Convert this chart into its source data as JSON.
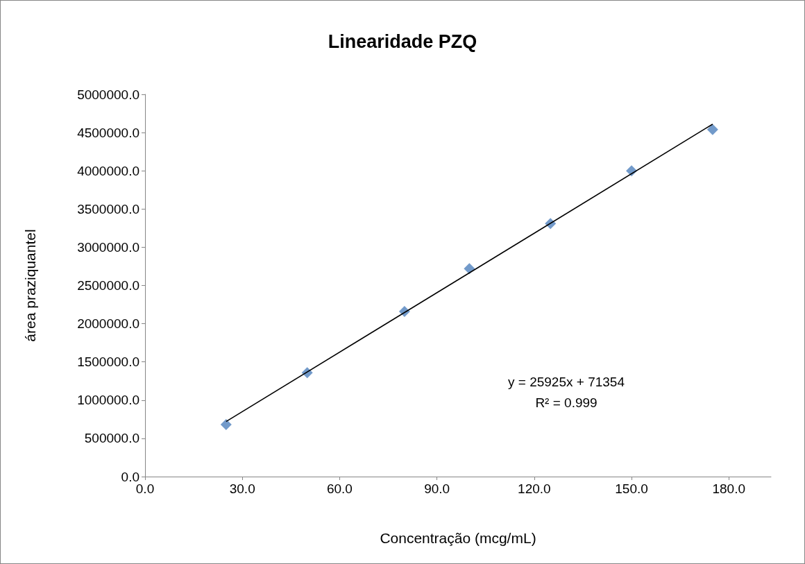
{
  "chart_data": {
    "type": "scatter",
    "title": "Linearidade PZQ",
    "xlabel": "Concentração (mcg/mL)",
    "ylabel": "área praziquantel",
    "series": [
      {
        "type": "scatter",
        "color": "#4f81bd",
        "marker": "diamond",
        "x": [
          25,
          50,
          80,
          100,
          125,
          150,
          175
        ],
        "values": [
          680000,
          1360000,
          2160000,
          2720000,
          3310000,
          4000000,
          4540000
        ]
      },
      {
        "type": "line",
        "color": "#000000",
        "marker": "none",
        "line_style": "solid",
        "x": [
          25,
          175
        ],
        "values": [
          720000,
          4610000
        ]
      }
    ],
    "xlim": [
      0,
      193
    ],
    "ylim": [
      0,
      5000000
    ],
    "xticks": [
      {
        "value": 0,
        "label": "0.0"
      },
      {
        "value": 30,
        "label": "30.0"
      },
      {
        "value": 60,
        "label": "60.0"
      },
      {
        "value": 90,
        "label": "90.0"
      },
      {
        "value": 120,
        "label": "120.0"
      },
      {
        "value": 150,
        "label": "150.0"
      },
      {
        "value": 180,
        "label": "180.0"
      }
    ],
    "yticks": [
      {
        "value": 0,
        "label": "0.0"
      },
      {
        "value": 500000,
        "label": "500000.0"
      },
      {
        "value": 1000000,
        "label": "1000000.0"
      },
      {
        "value": 1500000,
        "label": "1500000.0"
      },
      {
        "value": 2000000,
        "label": "2000000.0"
      },
      {
        "value": 2500000,
        "label": "2500000.0"
      },
      {
        "value": 3000000,
        "label": "3000000.0"
      },
      {
        "value": 3500000,
        "label": "3500000.0"
      },
      {
        "value": 4000000,
        "label": "4000000.0"
      },
      {
        "value": 4500000,
        "label": "4500000.0"
      },
      {
        "value": 5000000,
        "label": "5000000.0"
      }
    ],
    "annotations": [
      "y = 25925x + 71354",
      "R² = 0.999"
    ],
    "grid": false
  }
}
